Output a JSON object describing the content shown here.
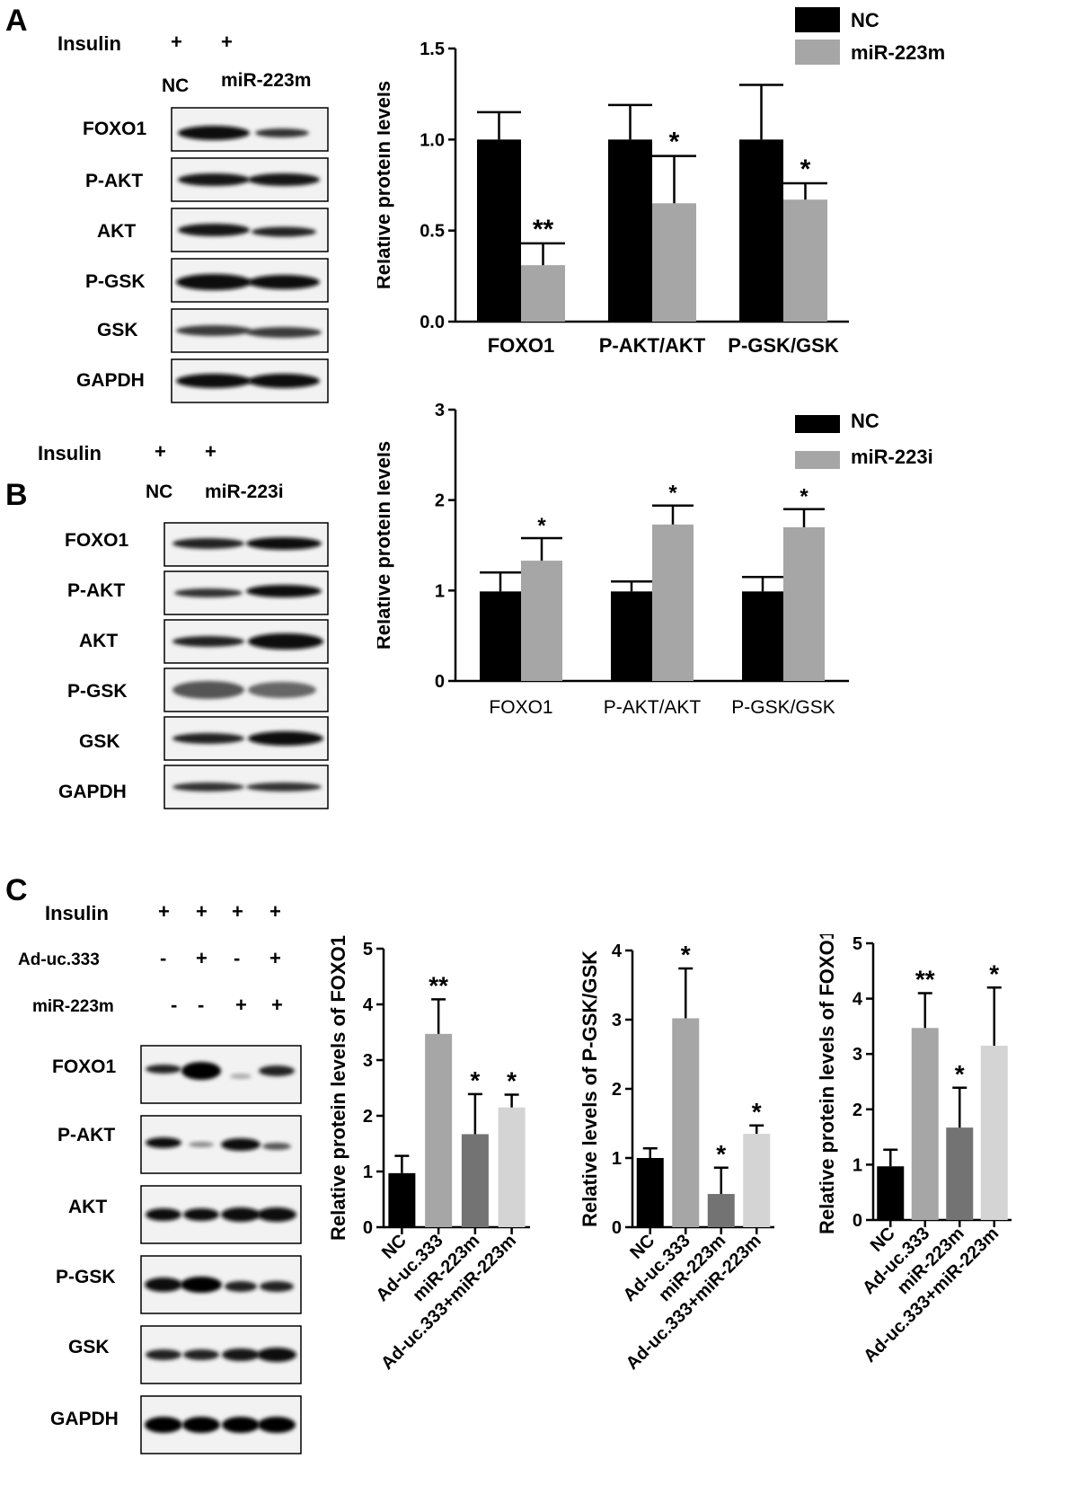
{
  "panels": {
    "A": "A",
    "B": "B",
    "C": "C"
  },
  "blot_A": {
    "treatments": [
      {
        "label": "Insulin",
        "marks": [
          "+",
          "+"
        ]
      }
    ],
    "lanes": [
      "NC",
      "miR-223m"
    ],
    "bands": [
      "FOXO1",
      "P-AKT",
      "AKT",
      "P-GSK",
      "GSK",
      "GAPDH"
    ]
  },
  "blot_B": {
    "treatments": [
      {
        "label": "Insulin",
        "marks": [
          "+",
          "+"
        ]
      }
    ],
    "lanes": [
      "NC",
      "miR-223i"
    ],
    "bands": [
      "FOXO1",
      "P-AKT",
      "AKT",
      "P-GSK",
      "GSK",
      "GAPDH"
    ]
  },
  "blot_C": {
    "treatments": [
      {
        "label": "Insulin",
        "marks": [
          "+",
          "+",
          "+",
          "+"
        ]
      },
      {
        "label": "Ad-uc.333",
        "marks": [
          "-",
          "+",
          "-",
          "+"
        ]
      },
      {
        "label": "miR-223m",
        "marks": [
          "-",
          "-",
          "+",
          "+"
        ]
      }
    ],
    "bands": [
      "FOXO1",
      "P-AKT",
      "AKT",
      "P-GSK",
      "GSK",
      "GAPDH"
    ]
  },
  "chart_data": [
    {
      "id": "A",
      "type": "bar",
      "categories": [
        "FOXO1",
        "P-AKT/AKT",
        "P-GSK/GSK"
      ],
      "series": [
        {
          "name": "NC",
          "color": "#000000",
          "values": [
            1.0,
            1.0,
            1.0
          ],
          "errors": [
            0.15,
            0.19,
            0.3
          ],
          "sig": [
            "",
            "",
            ""
          ]
        },
        {
          "name": "miR-223m",
          "color": "#a6a6a6",
          "values": [
            0.31,
            0.65,
            0.67
          ],
          "errors": [
            0.12,
            0.26,
            0.09
          ],
          "sig": [
            "**",
            "*",
            "*"
          ]
        }
      ],
      "ylabel": "Relative protein levels",
      "ylim": [
        0,
        1.5
      ],
      "yticks": [
        "0.0",
        "0.5",
        "1.0",
        "1.5"
      ],
      "legend": "top-right"
    },
    {
      "id": "B",
      "type": "bar",
      "categories": [
        "FOXO1",
        "P-AKT/AKT",
        "P-GSK/GSK"
      ],
      "series": [
        {
          "name": "NC",
          "color": "#000000",
          "values": [
            0.99,
            0.99,
            0.99
          ],
          "errors": [
            0.21,
            0.11,
            0.16
          ],
          "sig": [
            "",
            "",
            ""
          ]
        },
        {
          "name": "miR-223i",
          "color": "#a6a6a6",
          "values": [
            1.33,
            1.73,
            1.7
          ],
          "errors": [
            0.25,
            0.21,
            0.2
          ],
          "sig": [
            "*",
            "*",
            "*"
          ]
        }
      ],
      "ylabel": "Relative protein levels",
      "ylim": [
        0,
        3
      ],
      "yticks": [
        "0",
        "1",
        "2",
        "3"
      ],
      "legend": "top-right"
    },
    {
      "id": "C1",
      "type": "bar",
      "categories": [
        "NC",
        "Ad-uc.333",
        "miR-223m",
        "Ad-uc.333+miR-223m"
      ],
      "values": [
        0.97,
        3.47,
        1.67,
        2.15
      ],
      "errors": [
        0.31,
        0.62,
        0.72,
        0.23
      ],
      "sig": [
        "",
        "**",
        "*",
        "*"
      ],
      "colors": [
        "#000000",
        "#a6a6a6",
        "#737373",
        "#d4d4d4"
      ],
      "ylabel": "Relative protein levels of FOXO1",
      "ylim": [
        0,
        5
      ],
      "yticks": [
        "0",
        "1",
        "2",
        "3",
        "4",
        "5"
      ]
    },
    {
      "id": "C2",
      "type": "bar",
      "categories": [
        "NC",
        "Ad-uc.333",
        "miR-223m",
        "Ad-uc.333+miR-223m"
      ],
      "values": [
        1.0,
        3.02,
        0.48,
        1.35
      ],
      "errors": [
        0.14,
        0.72,
        0.38,
        0.12
      ],
      "sig": [
        "",
        "*",
        "*",
        "*"
      ],
      "colors": [
        "#000000",
        "#a6a6a6",
        "#737373",
        "#d4d4d4"
      ],
      "ylabel": "Relative levels of  P-GSK/GSK",
      "ylim": [
        0,
        4
      ],
      "yticks": [
        "0",
        "1",
        "2",
        "3",
        "4"
      ]
    },
    {
      "id": "C3",
      "type": "bar",
      "categories": [
        "NC",
        "Ad-uc.333",
        "miR-223m",
        "Ad-uc.333+miR-223m"
      ],
      "values": [
        0.97,
        3.47,
        1.67,
        3.15
      ],
      "errors": [
        0.3,
        0.63,
        0.72,
        1.05
      ],
      "sig": [
        "",
        "**",
        "*",
        "*"
      ],
      "colors": [
        "#000000",
        "#a6a6a6",
        "#737373",
        "#d4d4d4"
      ],
      "ylabel": "Relative protein levels of FOXO1",
      "ylim": [
        0,
        5
      ],
      "yticks": [
        "0",
        "1",
        "2",
        "3",
        "4",
        "5"
      ]
    }
  ]
}
